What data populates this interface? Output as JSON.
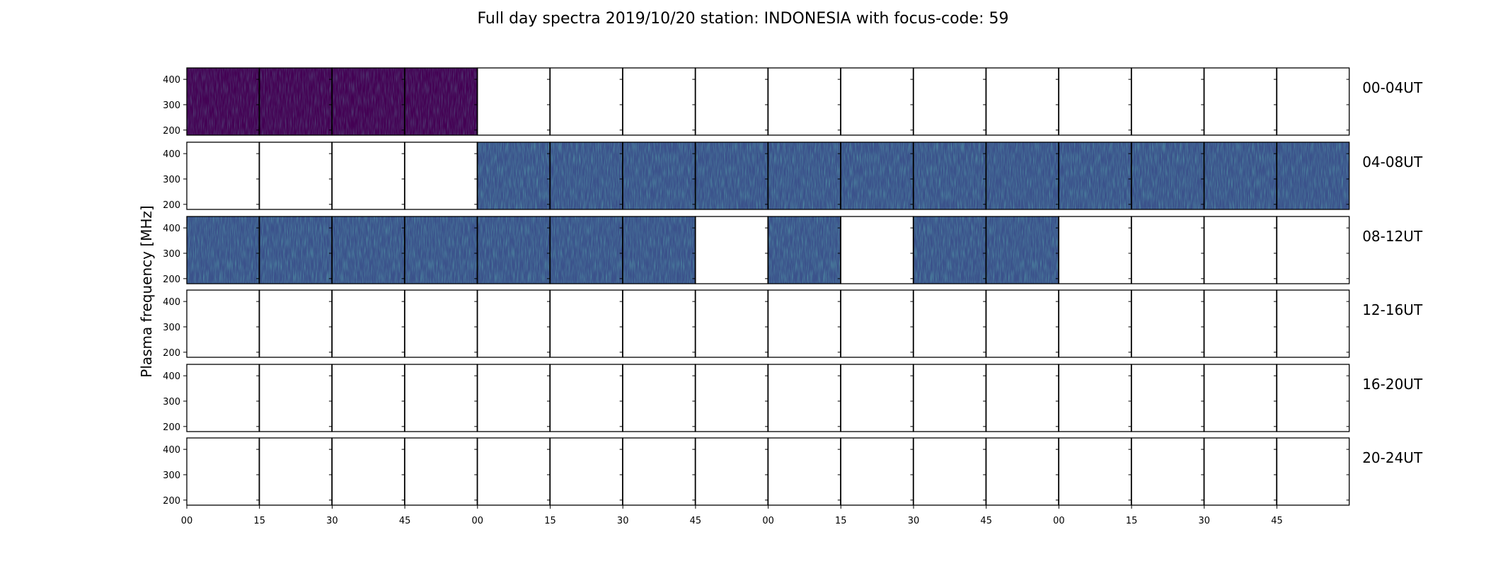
{
  "chart_data": {
    "type": "heatmap",
    "title": "Full day spectra 2019/10/20 station: INDONESIA with focus-code: 59",
    "ylabel": "Plasma frequency [MHz]",
    "ylim": [
      180,
      445
    ],
    "yticks": [
      "200",
      "300",
      "400"
    ],
    "xticks": [
      "00",
      "15",
      "30",
      "45",
      "00",
      "15",
      "30",
      "45",
      "00",
      "15",
      "30",
      "45",
      "00",
      "15",
      "30",
      "45"
    ],
    "rows": [
      {
        "label": "00-04UT",
        "filled": [
          1,
          1,
          1,
          1,
          0,
          0,
          0,
          0,
          0,
          0,
          0,
          0,
          0,
          0,
          0,
          0
        ],
        "intensity": [
          0.18,
          0.22,
          0.08,
          0.24,
          0,
          0,
          0,
          0,
          0,
          0,
          0,
          0,
          0,
          0,
          0,
          0
        ]
      },
      {
        "label": "04-08UT",
        "filled": [
          0,
          0,
          0,
          0,
          1,
          1,
          1,
          1,
          1,
          1,
          1,
          1,
          1,
          1,
          1,
          1
        ],
        "intensity": [
          0,
          0,
          0,
          0,
          0.52,
          0.46,
          0.44,
          0.42,
          0.48,
          0.46,
          0.5,
          0.38,
          0.5,
          0.46,
          0.48,
          0.36
        ]
      },
      {
        "label": "08-12UT",
        "filled": [
          1,
          1,
          1,
          1,
          1,
          1,
          1,
          0,
          1,
          0,
          1,
          1,
          0,
          0,
          0,
          0
        ],
        "intensity": [
          0.4,
          0.44,
          0.46,
          0.42,
          0.4,
          0.42,
          0.38,
          0,
          0.5,
          0,
          0.46,
          0.44,
          0,
          0,
          0,
          0
        ]
      },
      {
        "label": "12-16UT",
        "filled": [
          0,
          0,
          0,
          0,
          0,
          0,
          0,
          0,
          0,
          0,
          0,
          0,
          0,
          0,
          0,
          0
        ],
        "intensity": [
          0,
          0,
          0,
          0,
          0,
          0,
          0,
          0,
          0,
          0,
          0,
          0,
          0,
          0,
          0,
          0
        ]
      },
      {
        "label": "16-20UT",
        "filled": [
          0,
          0,
          0,
          0,
          0,
          0,
          0,
          0,
          0,
          0,
          0,
          0,
          0,
          0,
          0,
          0
        ],
        "intensity": [
          0,
          0,
          0,
          0,
          0,
          0,
          0,
          0,
          0,
          0,
          0,
          0,
          0,
          0,
          0,
          0
        ]
      },
      {
        "label": "20-24UT",
        "filled": [
          0,
          0,
          0,
          0,
          0,
          0,
          0,
          0,
          0,
          0,
          0,
          0,
          0,
          0,
          0,
          0
        ],
        "intensity": [
          0,
          0,
          0,
          0,
          0,
          0,
          0,
          0,
          0,
          0,
          0,
          0,
          0,
          0,
          0,
          0
        ]
      }
    ],
    "colormap": [
      "#440154",
      "#3b528b",
      "#21918c",
      "#5ec962"
    ],
    "grid": false
  }
}
